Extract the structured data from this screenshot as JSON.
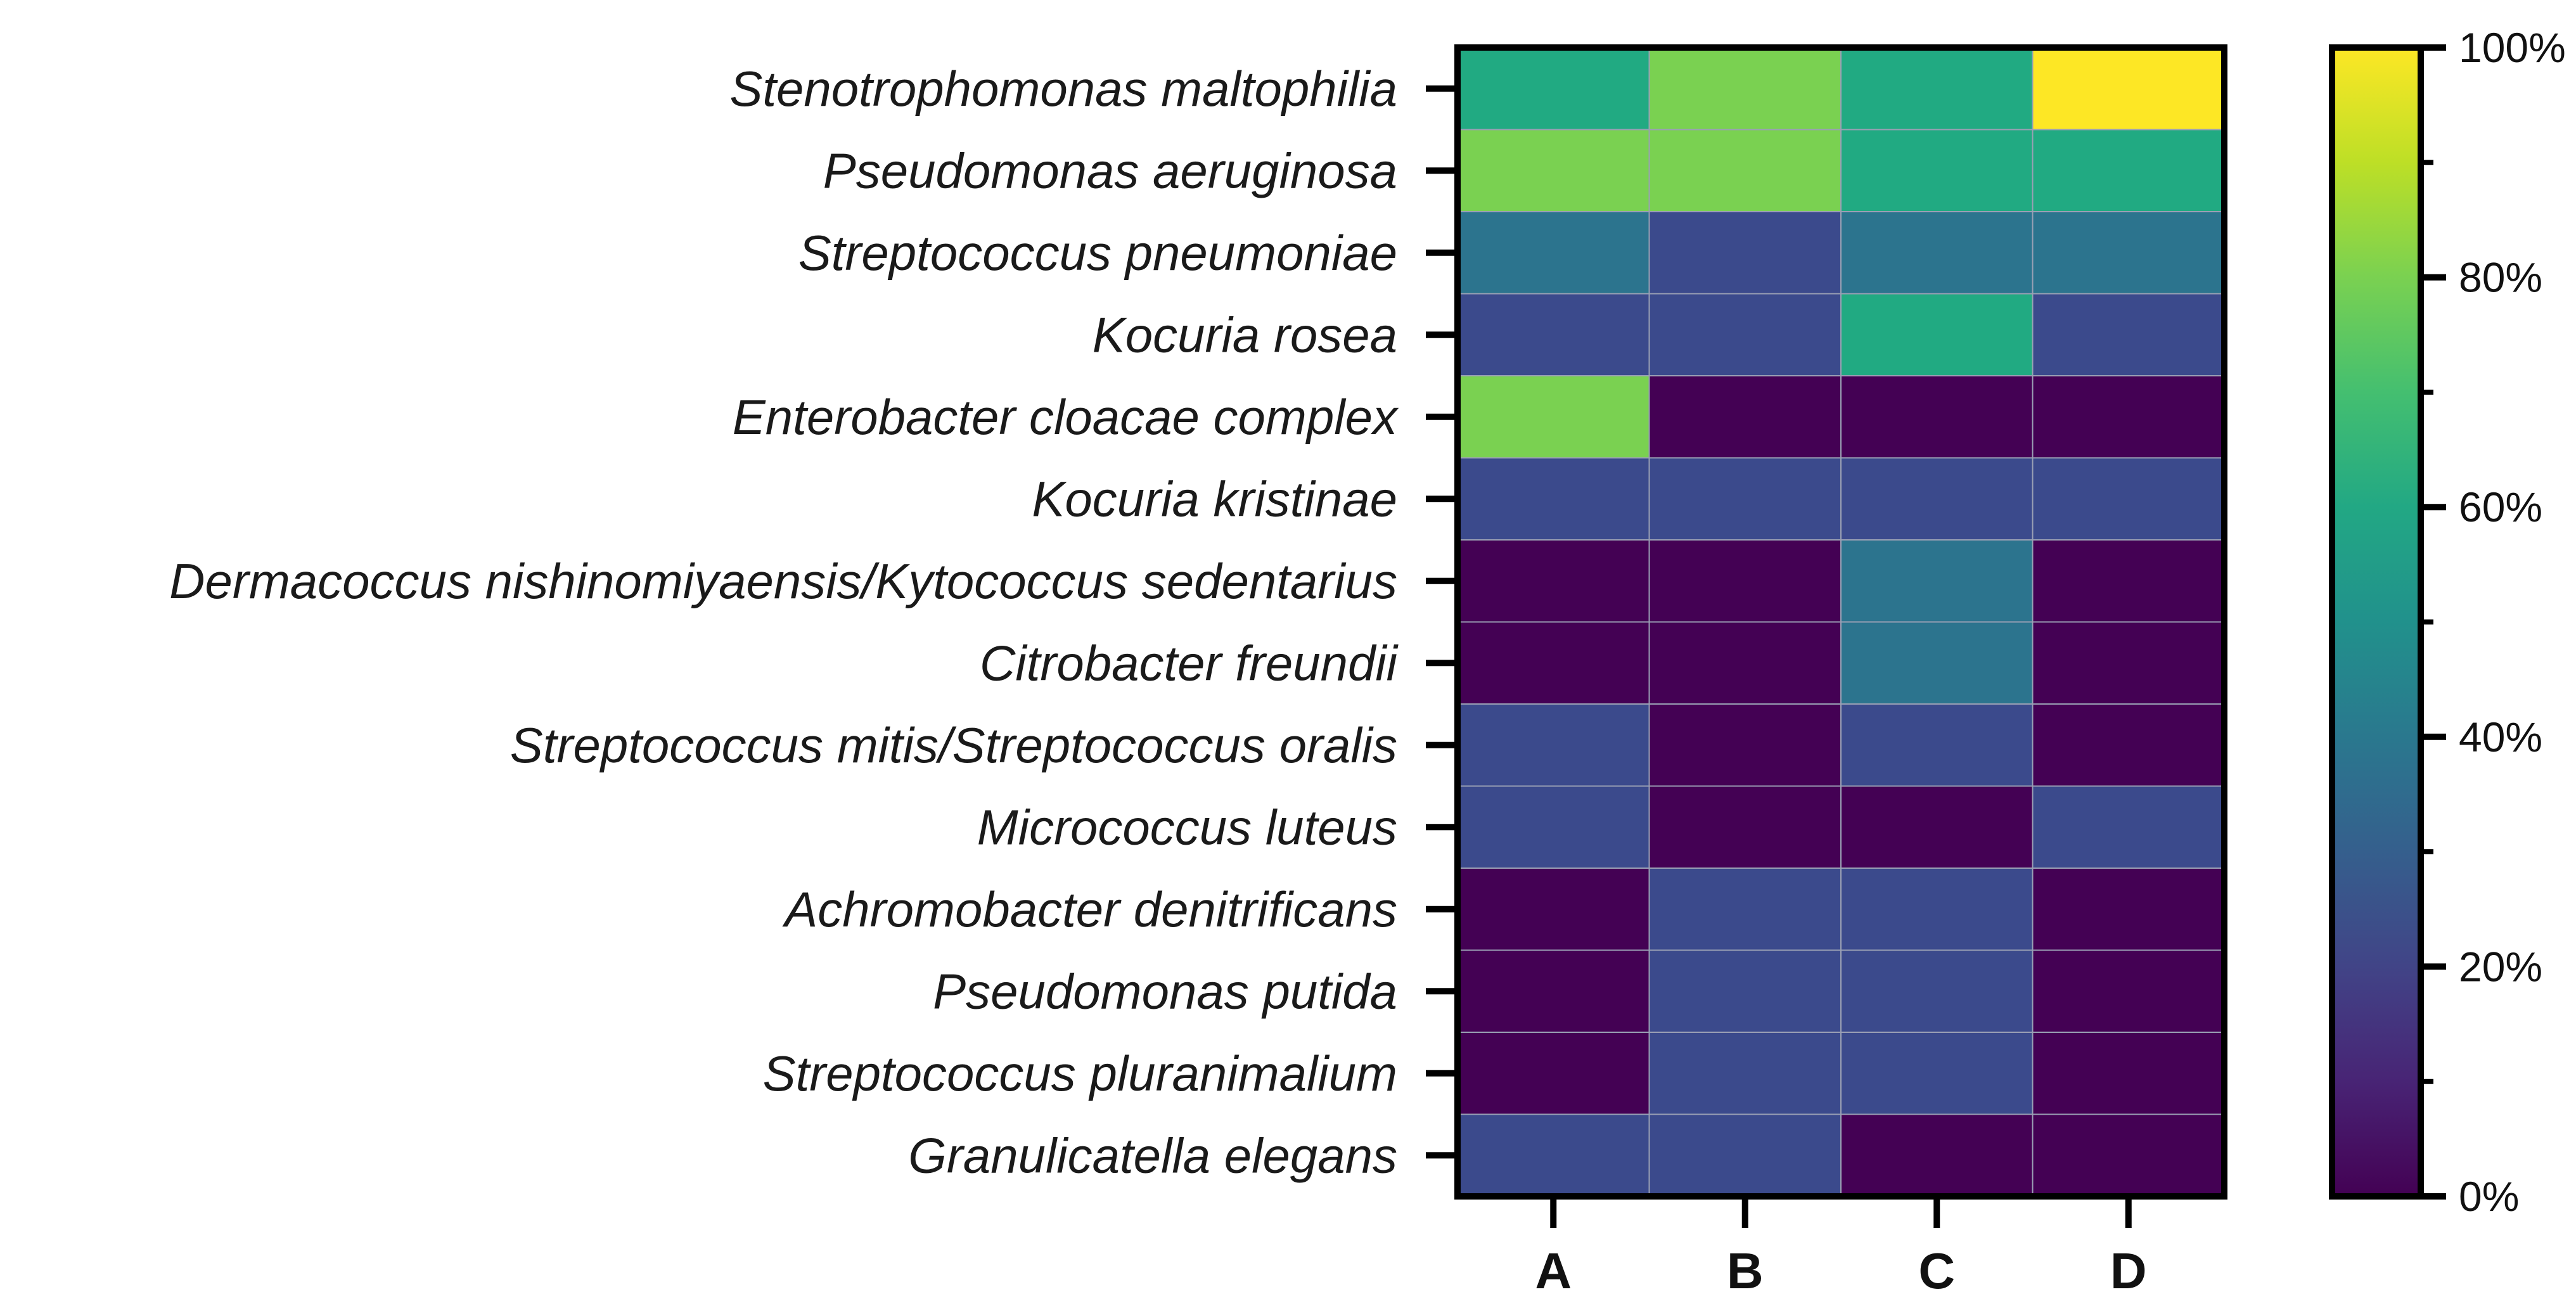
{
  "chart_data": {
    "type": "heatmap",
    "title": "",
    "xlabel": "",
    "ylabel": "",
    "columns": [
      "A",
      "B",
      "C",
      "D"
    ],
    "rows": [
      "Stenotrophomonas maltophilia",
      "Pseudomonas aeruginosa",
      "Streptococcus pneumoniae",
      "Kocuria rosea",
      "Enterobacter cloacae complex",
      "Kocuria kristinae",
      "Dermacoccus nishinomiyaensis/Kytococcus sedentarius",
      "Citrobacter freundii",
      "Streptococcus mitis/Streptococcus oralis",
      "Micrococcus luteus",
      "Achromobacter denitrificans",
      "Pseudomonas putida",
      "Streptococcus pluranimalium",
      "Granulicatella elegans"
    ],
    "values": [
      [
        60,
        80,
        60,
        100
      ],
      [
        80,
        80,
        60,
        60
      ],
      [
        40,
        20,
        40,
        40
      ],
      [
        20,
        20,
        60,
        20
      ],
      [
        80,
        0,
        0,
        0
      ],
      [
        20,
        20,
        20,
        20
      ],
      [
        0,
        0,
        40,
        0
      ],
      [
        0,
        0,
        40,
        0
      ],
      [
        20,
        0,
        20,
        0
      ],
      [
        20,
        0,
        0,
        20
      ],
      [
        0,
        20,
        20,
        0
      ],
      [
        0,
        20,
        20,
        0
      ],
      [
        0,
        20,
        20,
        0
      ],
      [
        20,
        20,
        0,
        0
      ]
    ],
    "colorbar": {
      "range": [
        0,
        100
      ],
      "ticks": [
        "0%",
        "20%",
        "40%",
        "60%",
        "80%",
        "100%"
      ],
      "colormap": "viridis"
    },
    "colors": {
      "0": "#440154",
      "20": "#3b4a8c",
      "40": "#2c748e",
      "60": "#21aa82",
      "80": "#7ad151",
      "100": "#fde725"
    }
  }
}
